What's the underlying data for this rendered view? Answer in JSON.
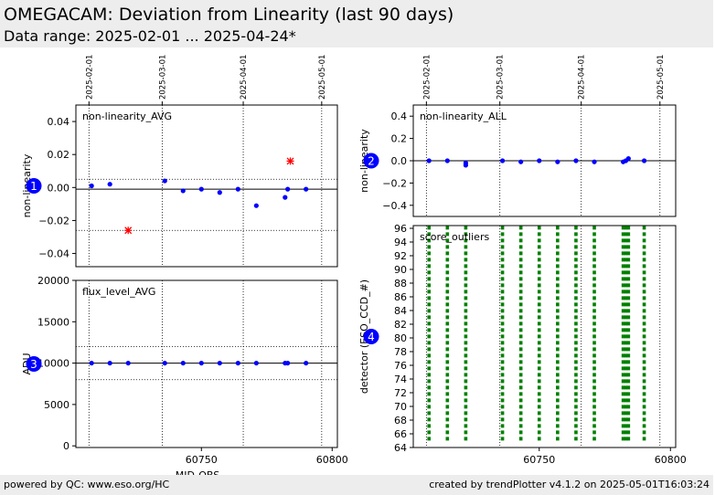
{
  "header": {
    "title": "OMEGACAM: Deviation from Linearity (last 90 days)",
    "subtitle": "Data range: 2025-02-01 ... 2025-04-24*"
  },
  "footer": {
    "left": "powered by QC: www.eso.org/HC",
    "right": "created by trendPlotter v4.1.2 on 2025-05-01T16:03:24"
  },
  "colors": {
    "point": "#0000ff",
    "outlier": "#ff0000",
    "score": "#008000",
    "badge": "#0000ff"
  },
  "shared": {
    "date_ticks": [
      {
        "label": "2025-02-01",
        "mjd": 60707
      },
      {
        "label": "2025-03-01",
        "mjd": 60735
      },
      {
        "label": "2025-04-01",
        "mjd": 60766
      },
      {
        "label": "2025-05-01",
        "mjd": 60796
      }
    ],
    "xlabel": "MJD-OBS",
    "xticks": [
      60750,
      60800
    ],
    "xlim": [
      60702,
      60802
    ]
  },
  "chart_data": [
    {
      "type": "scatter",
      "badge": "1",
      "label": "non-linearity_AVG",
      "ylabel": "non-linearity",
      "ylim": [
        -0.048,
        0.05
      ],
      "yticks": [
        {
          "v": 0.04,
          "label": "0.04"
        },
        {
          "v": 0.02,
          "label": "0.02"
        },
        {
          "v": 0.0,
          "label": "0.00"
        },
        {
          "v": -0.02,
          "label": "−0.02"
        },
        {
          "v": -0.04,
          "label": "−0.04"
        }
      ],
      "ref_solid": -0.001,
      "ref_dotted": [
        0.005,
        -0.026
      ],
      "x": [
        60708,
        60715,
        60736,
        60743,
        60750,
        60757,
        60764,
        60771,
        60782,
        60783,
        60790
      ],
      "y": [
        0.001,
        0.002,
        0.004,
        -0.002,
        -0.001,
        -0.003,
        -0.001,
        -0.011,
        -0.006,
        -0.001,
        -0.001
      ],
      "outliers": {
        "x": [
          60722,
          60784
        ],
        "y": [
          -0.026,
          0.016
        ]
      }
    },
    {
      "type": "scatter",
      "badge": "2",
      "label": "non-linearity_ALL",
      "ylabel": "non-linearity",
      "ylim": [
        -0.5,
        0.5
      ],
      "yticks": [
        {
          "v": 0.4,
          "label": "0.4"
        },
        {
          "v": 0.2,
          "label": "0.2"
        },
        {
          "v": 0.0,
          "label": "0.0"
        },
        {
          "v": -0.2,
          "label": "−0.2"
        },
        {
          "v": -0.4,
          "label": "−0.4"
        }
      ],
      "ref_solid": 0.0,
      "x": [
        60708,
        60715,
        60722,
        60722,
        60736,
        60743,
        60750,
        60757,
        60764,
        60771,
        60782,
        60783,
        60784,
        60790
      ],
      "y": [
        0.0,
        0.0,
        -0.02,
        -0.04,
        0.0,
        -0.01,
        0.0,
        -0.01,
        0.0,
        -0.01,
        -0.01,
        0.0,
        0.02,
        0.0
      ]
    },
    {
      "type": "scatter",
      "badge": "3",
      "label": "flux_level_AVG",
      "ylabel": "ADU",
      "ylim": [
        -200,
        20000
      ],
      "yticks": [
        {
          "v": 20000,
          "label": "20000"
        },
        {
          "v": 15000,
          "label": "15000"
        },
        {
          "v": 10000,
          "label": "10000"
        },
        {
          "v": 5000,
          "label": "5000"
        },
        {
          "v": 0,
          "label": "0"
        }
      ],
      "ref_solid": 10000,
      "ref_dotted": [
        12000,
        8000
      ],
      "x": [
        60708,
        60715,
        60722,
        60736,
        60743,
        60750,
        60757,
        60764,
        60771,
        60782,
        60783,
        60790
      ],
      "y": [
        10000,
        10000,
        10000,
        10000,
        10000,
        10000,
        10000,
        10000,
        10000,
        10000,
        10000,
        10000
      ]
    },
    {
      "type": "scatter",
      "badge": "4",
      "label": "score_outliers",
      "ylabel": "detector (ESO_CCD_#)",
      "ylim": [
        64,
        96.4
      ],
      "ytick_values": [
        64,
        66,
        68,
        70,
        72,
        74,
        76,
        78,
        80,
        82,
        84,
        86,
        88,
        90,
        92,
        94,
        96
      ],
      "ytick_labels": [
        "64",
        "66",
        "68",
        "70",
        "72",
        "74",
        "76",
        "78",
        "80",
        "82",
        "84",
        "86",
        "88",
        "90",
        "92",
        "94",
        "96"
      ],
      "x": [
        60708,
        60715,
        60722,
        60736,
        60743,
        60750,
        60757,
        60764,
        60771,
        60782,
        60783,
        60784,
        60790
      ],
      "detector_min": 65,
      "detector_max": 96
    }
  ]
}
